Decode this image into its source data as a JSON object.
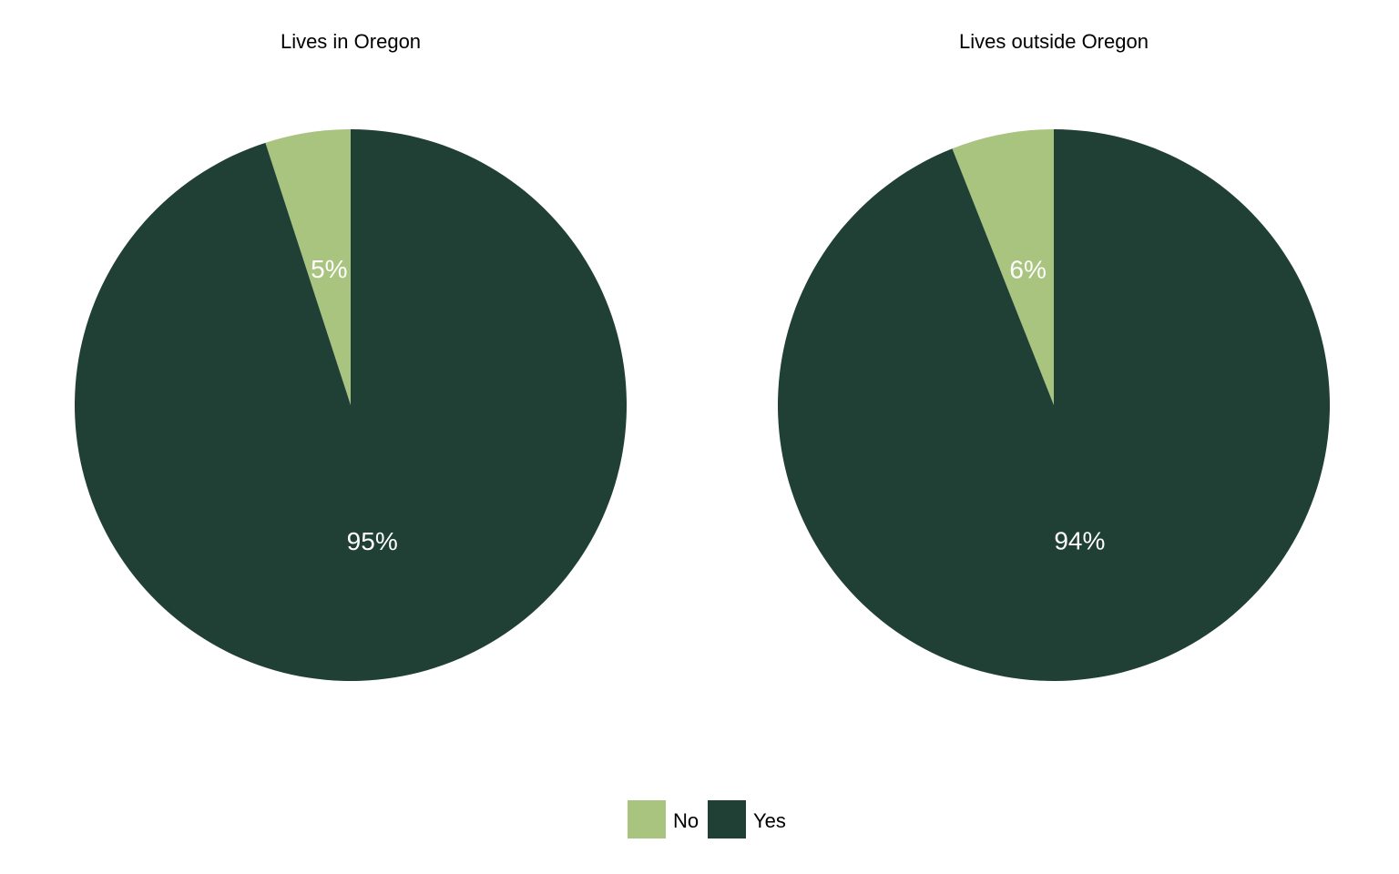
{
  "chart_data": [
    {
      "type": "pie",
      "title": "Lives in Oregon",
      "categories": [
        "No",
        "Yes"
      ],
      "values": [
        5,
        95
      ],
      "labels": [
        "5%",
        "95%"
      ]
    },
    {
      "type": "pie",
      "title": "Lives outside Oregon",
      "categories": [
        "No",
        "Yes"
      ],
      "values": [
        6,
        94
      ],
      "labels": [
        "6%",
        "94%"
      ]
    }
  ],
  "legend": {
    "placement": "bottom",
    "items": [
      {
        "label": "No",
        "color": "#a8c47f"
      },
      {
        "label": "Yes",
        "color": "#204035"
      }
    ]
  },
  "colors": {
    "No": "#a8c47f",
    "Yes": "#204035",
    "label_text": "#ffffff"
  }
}
